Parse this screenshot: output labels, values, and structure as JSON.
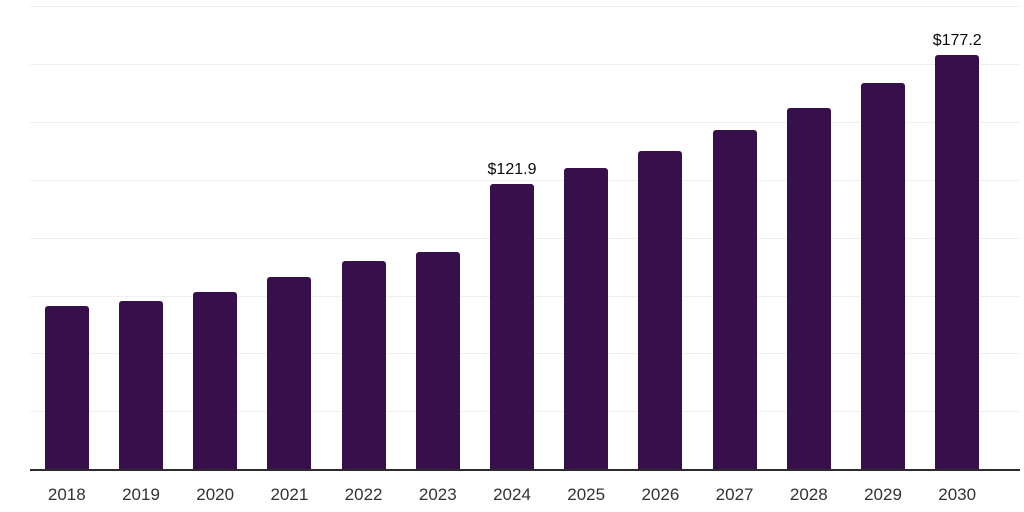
{
  "chart_data": {
    "type": "bar",
    "categories": [
      "2018",
      "2019",
      "2020",
      "2021",
      "2022",
      "2023",
      "2024",
      "2025",
      "2026",
      "2027",
      "2028",
      "2029",
      "2030"
    ],
    "values": [
      69.7,
      72.0,
      75.7,
      82.1,
      88.9,
      93.1,
      121.9,
      128.8,
      136.4,
      145.0,
      154.7,
      165.5,
      177.2
    ],
    "data_labels": {
      "2024": "$121.9",
      "2030": "$177.2"
    },
    "title": "",
    "xlabel": "",
    "ylabel": "",
    "ylim": [
      0,
      200
    ],
    "grid": {
      "visible": true,
      "y_step": 25,
      "orientation": "horizontal"
    },
    "legend_position": "none",
    "y_axis_ticks_visible": false,
    "colors": {
      "bar": "#37104B",
      "gridline": "#efefef",
      "axis_line": "#2b2b2b",
      "tick_label": "#333333",
      "value_label": "#0a0a0a",
      "background": "#ffffff"
    }
  }
}
